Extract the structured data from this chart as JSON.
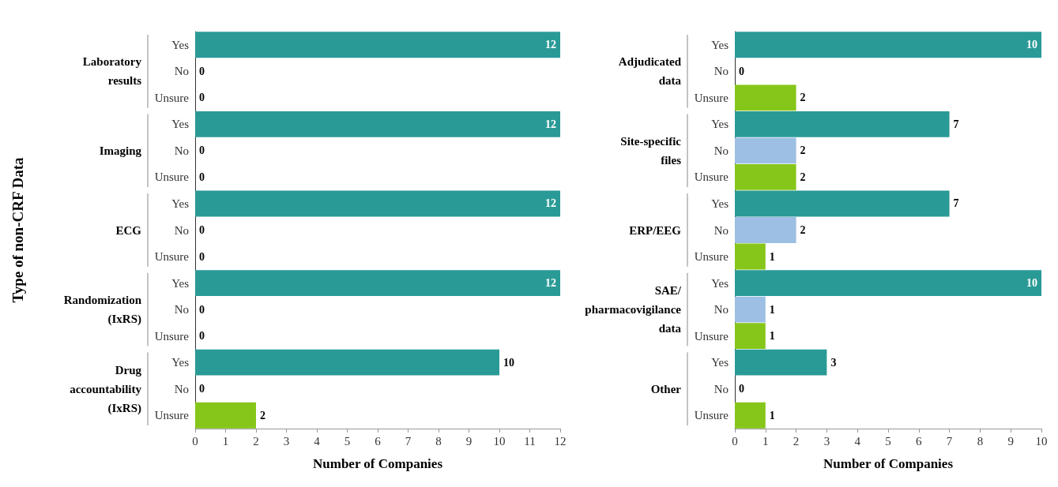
{
  "chart_data": [
    {
      "type": "bar",
      "orientation": "horizontal",
      "ylabel": "Type of non-CRF Data",
      "xlabel": "Number of Companies",
      "categories": [
        "Yes",
        "No",
        "Unsure",
        "Yes",
        "No",
        "Unsure",
        "Yes",
        "No",
        "Unsure",
        "Yes",
        "No",
        "Unsure",
        "Yes",
        "No",
        "Unsure"
      ],
      "values": [
        12,
        0,
        0,
        12,
        0,
        0,
        12,
        0,
        0,
        12,
        0,
        0,
        10,
        0,
        2
      ],
      "colors": [
        "#2a9a96",
        "#9cbfe3",
        "#86c61a",
        "#2a9a96",
        "#9cbfe3",
        "#86c61a",
        "#2a9a96",
        "#9cbfe3",
        "#86c61a",
        "#2a9a96",
        "#9cbfe3",
        "#86c61a",
        "#2a9a96",
        "#9cbfe3",
        "#86c61a"
      ],
      "annotations": [
        "Laboratory\nresults",
        "Imaging",
        "ECG",
        "Randomization\n(IxRS)",
        "Drug\naccountability\n(IxRS)"
      ],
      "xlim": [
        0,
        12
      ],
      "xticks": [
        0,
        1,
        2,
        3,
        4,
        5,
        6,
        7,
        8,
        9,
        10,
        11,
        12
      ],
      "data_labels": true,
      "grid": false
    },
    {
      "type": "bar",
      "orientation": "horizontal",
      "xlabel": "Number of Companies",
      "categories": [
        "Yes",
        "No",
        "Unsure",
        "Yes",
        "No",
        "Unsure",
        "Yes",
        "No",
        "Unsure",
        "Yes",
        "No",
        "Unsure",
        "Yes",
        "No",
        "Unsure"
      ],
      "values": [
        10,
        0,
        2,
        7,
        2,
        2,
        7,
        2,
        1,
        10,
        1,
        1,
        3,
        0,
        1
      ],
      "colors": [
        "#2a9a96",
        "#9cbfe3",
        "#86c61a",
        "#2a9a96",
        "#9cbfe3",
        "#86c61a",
        "#2a9a96",
        "#9cbfe3",
        "#86c61a",
        "#2a9a96",
        "#9cbfe3",
        "#86c61a",
        "#2a9a96",
        "#9cbfe3",
        "#86c61a"
      ],
      "annotations": [
        "Adjudicated\ndata",
        "Site-specific\nfiles",
        "ERP/EEG",
        "SAE/\npharmacovigilance\ndata",
        "Other"
      ],
      "xlim": [
        0,
        10
      ],
      "xticks": [
        0,
        1,
        2,
        3,
        4,
        5,
        6,
        7,
        8,
        9,
        10
      ],
      "data_labels": true,
      "grid": false
    }
  ]
}
